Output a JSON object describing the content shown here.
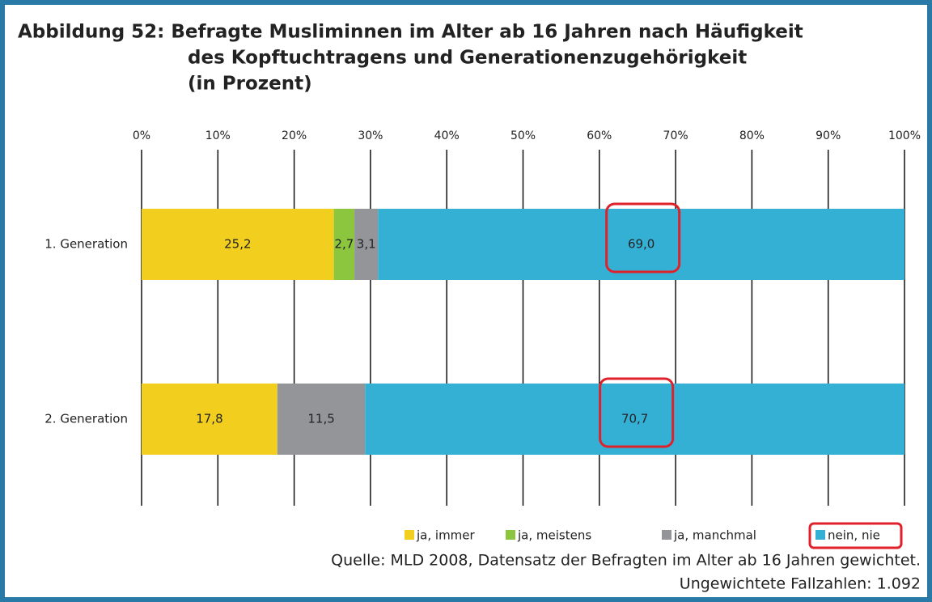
{
  "chart_data": {
    "type": "stacked-barh",
    "title": [
      "Abbildung 52: Befragte Musliminnen im Alter ab 16 Jahren nach Häufigkeit",
      "des Kopftuchtragens und Generationenzugehörigkeit",
      "(in Prozent)"
    ],
    "categories": [
      "1. Generation",
      "2. Generation"
    ],
    "series": [
      {
        "name": "ja, immer",
        "color": "#f2cf1f",
        "values": [
          25.2,
          17.8
        ],
        "value_labels": [
          "25,2",
          "17,8"
        ]
      },
      {
        "name": "ja, meistens",
        "color": "#8cc63f",
        "values": [
          2.7,
          null
        ],
        "value_labels": [
          "2,7",
          null
        ]
      },
      {
        "name": "ja, manchmal",
        "color": "#939598",
        "values": [
          3.1,
          11.5
        ],
        "value_labels": [
          "3,1",
          "11,5"
        ]
      },
      {
        "name": "nein, nie",
        "color": "#35b0d5",
        "values": [
          69.0,
          70.7
        ],
        "value_labels": [
          "69,0",
          "70,7"
        ]
      }
    ],
    "xlim": [
      0,
      100
    ],
    "xticks": [
      {
        "value": 0,
        "label": "0%"
      },
      {
        "value": 10,
        "label": "10%"
      },
      {
        "value": 20,
        "label": "20%"
      },
      {
        "value": 30,
        "label": "30%"
      },
      {
        "value": 40,
        "label": "40%"
      },
      {
        "value": 50,
        "label": "50%"
      },
      {
        "value": 60,
        "label": "60%"
      },
      {
        "value": 70,
        "label": "70%"
      },
      {
        "value": 80,
        "label": "80%"
      },
      {
        "value": 90,
        "label": "90%"
      },
      {
        "value": 100,
        "label": "100%"
      }
    ],
    "grid": true,
    "legend": "bottom-right",
    "source": [
      "Quelle: MLD 2008, Datensatz der Befragten im Alter ab 16 Jahren gewichtet.",
      "Ungewichtete Fallzahlen: 1.092"
    ]
  }
}
